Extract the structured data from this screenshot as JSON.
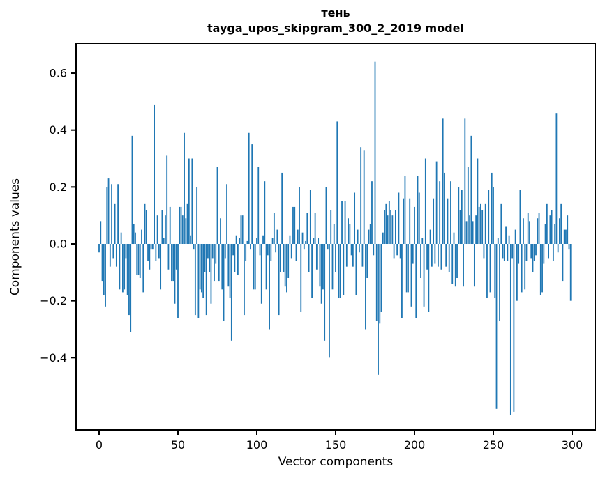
{
  "title": {
    "line1": "тень",
    "line2": "tayga_upos_skipgram_300_2_2019 model"
  },
  "axes": {
    "xlabel": "Vector components",
    "ylabel": "Components values",
    "x_ticks": [
      {
        "v": 0,
        "label": "0"
      },
      {
        "v": 50,
        "label": "50"
      },
      {
        "v": 100,
        "label": "100"
      },
      {
        "v": 150,
        "label": "150"
      },
      {
        "v": 200,
        "label": "200"
      },
      {
        "v": 250,
        "label": "250"
      },
      {
        "v": 300,
        "label": "300"
      }
    ],
    "y_ticks": [
      {
        "v": 0.6,
        "label": "0.6"
      },
      {
        "v": 0.4,
        "label": "0.4"
      },
      {
        "v": 0.2,
        "label": "0.2"
      },
      {
        "v": 0.0,
        "label": "0.0"
      },
      {
        "v": -0.2,
        "label": "−0.2"
      },
      {
        "v": -0.4,
        "label": "−0.4"
      }
    ]
  },
  "colors": {
    "bar": "#1f77b4",
    "spine": "#000000",
    "background": "#ffffff"
  },
  "chart_data": {
    "type": "bar",
    "title": "тень\ntayga_upos_skipgram_300_2_2019 model",
    "xlabel": "Vector components",
    "ylabel": "Components values",
    "n_components": 300,
    "x_range": [
      0,
      299
    ],
    "xlim": [
      -14.6,
      315
    ],
    "ylim": [
      -0.654,
      0.705
    ],
    "grid": false,
    "legend": "none",
    "bar_color": "#1f77b4",
    "values": [
      -0.03,
      0.08,
      -0.13,
      -0.18,
      -0.22,
      0.2,
      0.23,
      -0.08,
      0.21,
      -0.05,
      0.14,
      -0.08,
      0.21,
      -0.16,
      0.04,
      -0.17,
      -0.16,
      -0.05,
      -0.18,
      -0.25,
      -0.31,
      0.38,
      0.07,
      0.04,
      -0.11,
      -0.11,
      -0.12,
      0.05,
      -0.17,
      0.14,
      0.12,
      -0.06,
      -0.09,
      -0.02,
      -0.02,
      0.49,
      -0.06,
      0.1,
      -0.05,
      -0.16,
      0.12,
      0.02,
      0.1,
      0.31,
      -0.09,
      0.13,
      -0.13,
      -0.13,
      -0.21,
      -0.09,
      -0.26,
      0.13,
      0.13,
      0.1,
      0.39,
      0.09,
      0.14,
      0.3,
      0.03,
      0.3,
      -0.02,
      -0.25,
      0.2,
      -0.26,
      -0.16,
      -0.17,
      -0.19,
      -0.1,
      -0.25,
      -0.05,
      -0.1,
      -0.21,
      -0.05,
      -0.13,
      -0.07,
      0.27,
      -0.13,
      0.09,
      -0.16,
      -0.27,
      -0.05,
      0.21,
      -0.15,
      -0.19,
      -0.34,
      -0.04,
      -0.1,
      0.03,
      -0.11,
      0.02,
      0.1,
      0.1,
      -0.25,
      -0.06,
      0.01,
      0.39,
      -0.02,
      0.35,
      -0.16,
      -0.16,
      0.02,
      0.27,
      -0.04,
      -0.21,
      0.03,
      0.22,
      -0.16,
      -0.04,
      -0.3,
      -0.06,
      0.02,
      0.11,
      -0.03,
      0.05,
      -0.25,
      -0.1,
      0.25,
      -0.1,
      -0.15,
      -0.17,
      -0.12,
      0.03,
      -0.05,
      0.13,
      0.13,
      -0.06,
      0.05,
      0.2,
      -0.24,
      0.04,
      -0.02,
      0.01,
      0.11,
      -0.1,
      0.19,
      -0.19,
      0.02,
      0.11,
      -0.09,
      0.02,
      -0.15,
      -0.21,
      -0.16,
      -0.34,
      0.2,
      -0.02,
      -0.4,
      0.12,
      -0.16,
      0.07,
      -0.1,
      0.43,
      -0.19,
      -0.19,
      0.15,
      -0.18,
      0.15,
      -0.08,
      0.09,
      0.07,
      -0.04,
      -0.08,
      0.18,
      -0.18,
      0.05,
      -0.03,
      0.34,
      -0.08,
      0.33,
      -0.3,
      -0.12,
      0.05,
      0.07,
      0.22,
      -0.04,
      0.64,
      -0.27,
      -0.46,
      -0.28,
      -0.24,
      0.04,
      0.12,
      0.14,
      0.1,
      0.15,
      0.12,
      0.1,
      -0.05,
      0.12,
      -0.04,
      0.18,
      -0.05,
      -0.26,
      0.16,
      0.24,
      -0.17,
      -0.17,
      0.16,
      -0.22,
      -0.07,
      0.13,
      -0.26,
      0.24,
      0.18,
      -0.12,
      0.02,
      -0.22,
      0.3,
      -0.09,
      -0.24,
      0.05,
      -0.08,
      0.16,
      -0.07,
      0.29,
      -0.08,
      0.22,
      -0.09,
      0.44,
      0.25,
      -0.08,
      0.16,
      -0.1,
      0.22,
      -0.14,
      0.04,
      -0.15,
      -0.12,
      0.2,
      0.12,
      0.19,
      -0.15,
      0.44,
      0.08,
      0.27,
      0.1,
      0.38,
      0.08,
      -0.15,
      0.1,
      0.3,
      0.13,
      0.14,
      0.12,
      -0.05,
      0.14,
      -0.19,
      0.19,
      -0.17,
      0.25,
      0.2,
      -0.19,
      -0.58,
      0.02,
      -0.27,
      0.14,
      -0.05,
      -0.06,
      0.06,
      -0.06,
      0.03,
      -0.6,
      -0.05,
      -0.59,
      0.05,
      -0.2,
      -0.07,
      0.19,
      -0.17,
      0.09,
      -0.16,
      -0.06,
      0.11,
      0.08,
      -0.05,
      -0.1,
      -0.06,
      -0.04,
      0.09,
      0.11,
      -0.18,
      -0.17,
      -0.07,
      0.07,
      0.14,
      -0.05,
      0.1,
      0.12,
      -0.06,
      0.07,
      0.46,
      -0.03,
      0.09,
      0.14,
      -0.13,
      0.05,
      0.05,
      0.1,
      -0.02,
      -0.2
    ]
  }
}
